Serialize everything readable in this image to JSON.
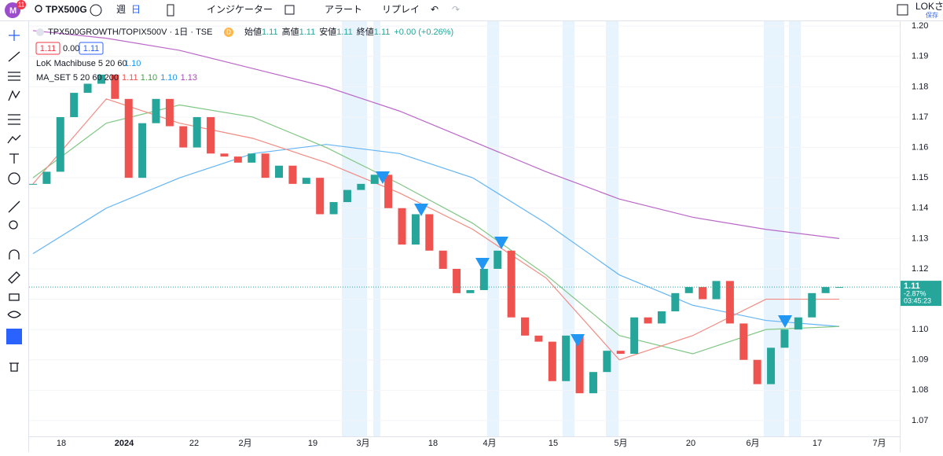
{
  "header": {
    "badge": "11",
    "symbol": "TPX500G",
    "interval_week": "週",
    "interval_day": "日",
    "indicators": "インジケーター",
    "alerts": "アラート",
    "replay": "リプレイ",
    "user": "LOKさん",
    "save": "保存"
  },
  "legend": {
    "title": "TPX500GROWTH/TOPIX500V · 1日 · TSE",
    "flag": "D",
    "open_label": "始値",
    "open": "1.11",
    "high_label": "高値",
    "high": "1.11",
    "low_label": "安値",
    "low": "1.11",
    "close_label": "終値",
    "close": "1.11",
    "change": "+0.00 (+0.26%)",
    "bid": "1.11",
    "spread": "0.00",
    "ask": "1.11",
    "indicator1": "LoK Machibuse 5 20 60",
    "indicator1_value": "1.10",
    "indicator2": "MA_SET 5 20 60 200",
    "indicator2_values": [
      "1.11",
      "1.10",
      "1.10",
      "1.13"
    ]
  },
  "chart": {
    "type": "candlestick",
    "ylim": [
      1.0648,
      1.2016
    ],
    "yticks": [
      {
        "value": 1.07,
        "label": "1.07"
      },
      {
        "value": 1.08,
        "label": "1.08"
      },
      {
        "value": 1.09,
        "label": "1.09"
      },
      {
        "value": 1.1,
        "label": "1.10"
      },
      {
        "value": 1.11,
        "label": "1.11"
      },
      {
        "value": 1.12,
        "label": "1.12"
      },
      {
        "value": 1.13,
        "label": "1.13"
      },
      {
        "value": 1.14,
        "label": "1.14"
      },
      {
        "value": 1.15,
        "label": "1.15"
      },
      {
        "value": 1.16,
        "label": "1.16"
      },
      {
        "value": 1.17,
        "label": "1.17"
      },
      {
        "value": 1.18,
        "label": "1.18"
      },
      {
        "value": 1.19,
        "label": "1.19"
      },
      {
        "value": 1.2,
        "label": "1.20"
      }
    ],
    "xlabels": [
      "18",
      "2024",
      "22",
      "2月",
      "19",
      "3月",
      "18",
      "4月",
      "15",
      "5月",
      "20",
      "6月",
      "17",
      "7月"
    ],
    "up_color": "#26a69a",
    "down_color": "#ef5350",
    "closes": [
      1.148,
      1.152,
      1.17,
      1.178,
      1.181,
      1.184,
      1.176,
      1.15,
      1.168,
      1.176,
      1.167,
      1.16,
      1.17,
      1.158,
      1.157,
      1.155,
      1.158,
      1.15,
      1.154,
      1.148,
      1.15,
      1.138,
      1.142,
      1.146,
      1.148,
      1.151,
      1.14,
      1.128,
      1.138,
      1.126,
      1.12,
      1.112,
      1.113,
      1.12,
      1.126,
      1.104,
      1.098,
      1.096,
      1.083,
      1.098,
      1.079,
      1.086,
      1.093,
      1.092,
      1.104,
      1.102,
      1.106,
      1.112,
      1.114,
      1.11,
      1.116,
      1.102,
      1.09,
      1.082,
      1.094,
      1.1,
      1.104,
      1.112,
      1.114,
      1.114
    ],
    "lines": [
      {
        "color": "#ba68c8",
        "values": [
          1.1985,
          1.196,
          1.192,
          1.186,
          1.18,
          1.172,
          1.162,
          1.152,
          1.143,
          1.137,
          1.133,
          1.13
        ]
      },
      {
        "color": "#64b5f6",
        "values": [
          1.125,
          1.14,
          1.15,
          1.158,
          1.161,
          1.158,
          1.15,
          1.135,
          1.118,
          1.108,
          1.103,
          1.101
        ]
      },
      {
        "color": "#81c784",
        "values": [
          1.15,
          1.168,
          1.174,
          1.17,
          1.16,
          1.148,
          1.135,
          1.118,
          1.098,
          1.092,
          1.1,
          1.101
        ]
      },
      {
        "color": "#f28b82",
        "values": [
          1.148,
          1.176,
          1.168,
          1.163,
          1.155,
          1.145,
          1.133,
          1.117,
          1.09,
          1.098,
          1.11,
          1.11
        ]
      }
    ],
    "last_price": {
      "value": 1.114,
      "label": "1.11",
      "change": "-2.87%",
      "countdown": "03:45:23"
    }
  }
}
